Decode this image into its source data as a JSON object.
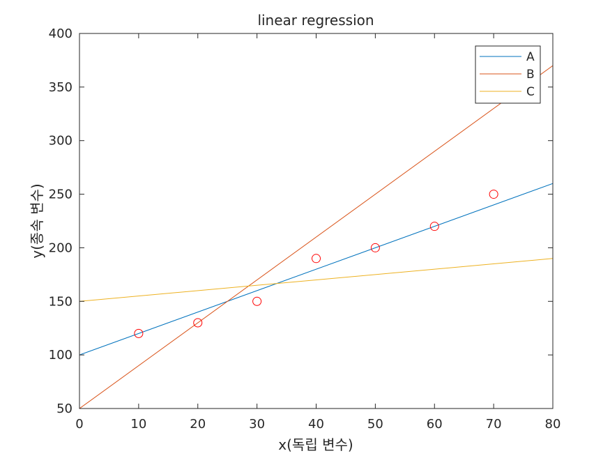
{
  "chart_data": {
    "type": "line",
    "title": "linear regression",
    "xlabel": "x(독립 변수)",
    "ylabel": "y(종속 변수)",
    "xlim": [
      0,
      80
    ],
    "ylim": [
      50,
      400
    ],
    "xticks": [
      0,
      10,
      20,
      30,
      40,
      50,
      60,
      70,
      80
    ],
    "yticks": [
      50,
      100,
      150,
      200,
      250,
      300,
      350,
      400
    ],
    "grid": false,
    "legend_position": "top-right",
    "series": [
      {
        "name": "A",
        "type": "line",
        "color": "#0072BD",
        "x": [
          0,
          80
        ],
        "y": [
          100,
          260
        ]
      },
      {
        "name": "B",
        "type": "line",
        "color": "#D95319",
        "x": [
          0,
          80
        ],
        "y": [
          50,
          370
        ]
      },
      {
        "name": "C",
        "type": "line",
        "color": "#EDB120",
        "x": [
          0,
          80
        ],
        "y": [
          150,
          190
        ]
      }
    ],
    "scatter": {
      "marker": "open-circle",
      "color": "#FF0000",
      "x": [
        10,
        20,
        30,
        40,
        50,
        60,
        70
      ],
      "y": [
        120,
        130,
        150,
        190,
        200,
        220,
        250
      ]
    }
  }
}
